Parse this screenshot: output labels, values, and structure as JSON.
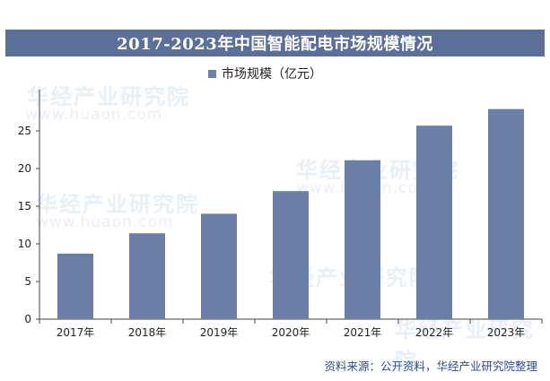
{
  "chart_data": {
    "type": "bar",
    "title": "2017-2023年中国智能配电市场规模情况",
    "categories": [
      "2017年",
      "2018年",
      "2019年",
      "2020年",
      "2021年",
      "2022年",
      "2023年"
    ],
    "series": [
      {
        "name": "市场规模（亿元）",
        "values": [
          8.7,
          11.4,
          14.0,
          17.0,
          21.1,
          25.7,
          27.9
        ]
      }
    ],
    "ylim": [
      0,
      30
    ],
    "yticks": [
      0,
      5,
      10,
      15,
      20,
      25
    ],
    "grid": false,
    "legend_position": "top-center",
    "bar_color": "#6b7ea7"
  },
  "watermark": {
    "text": "华经产业研究院",
    "url": "www.huaon.com"
  },
  "source": "资料来源：公开资料，华经产业研究院整理"
}
